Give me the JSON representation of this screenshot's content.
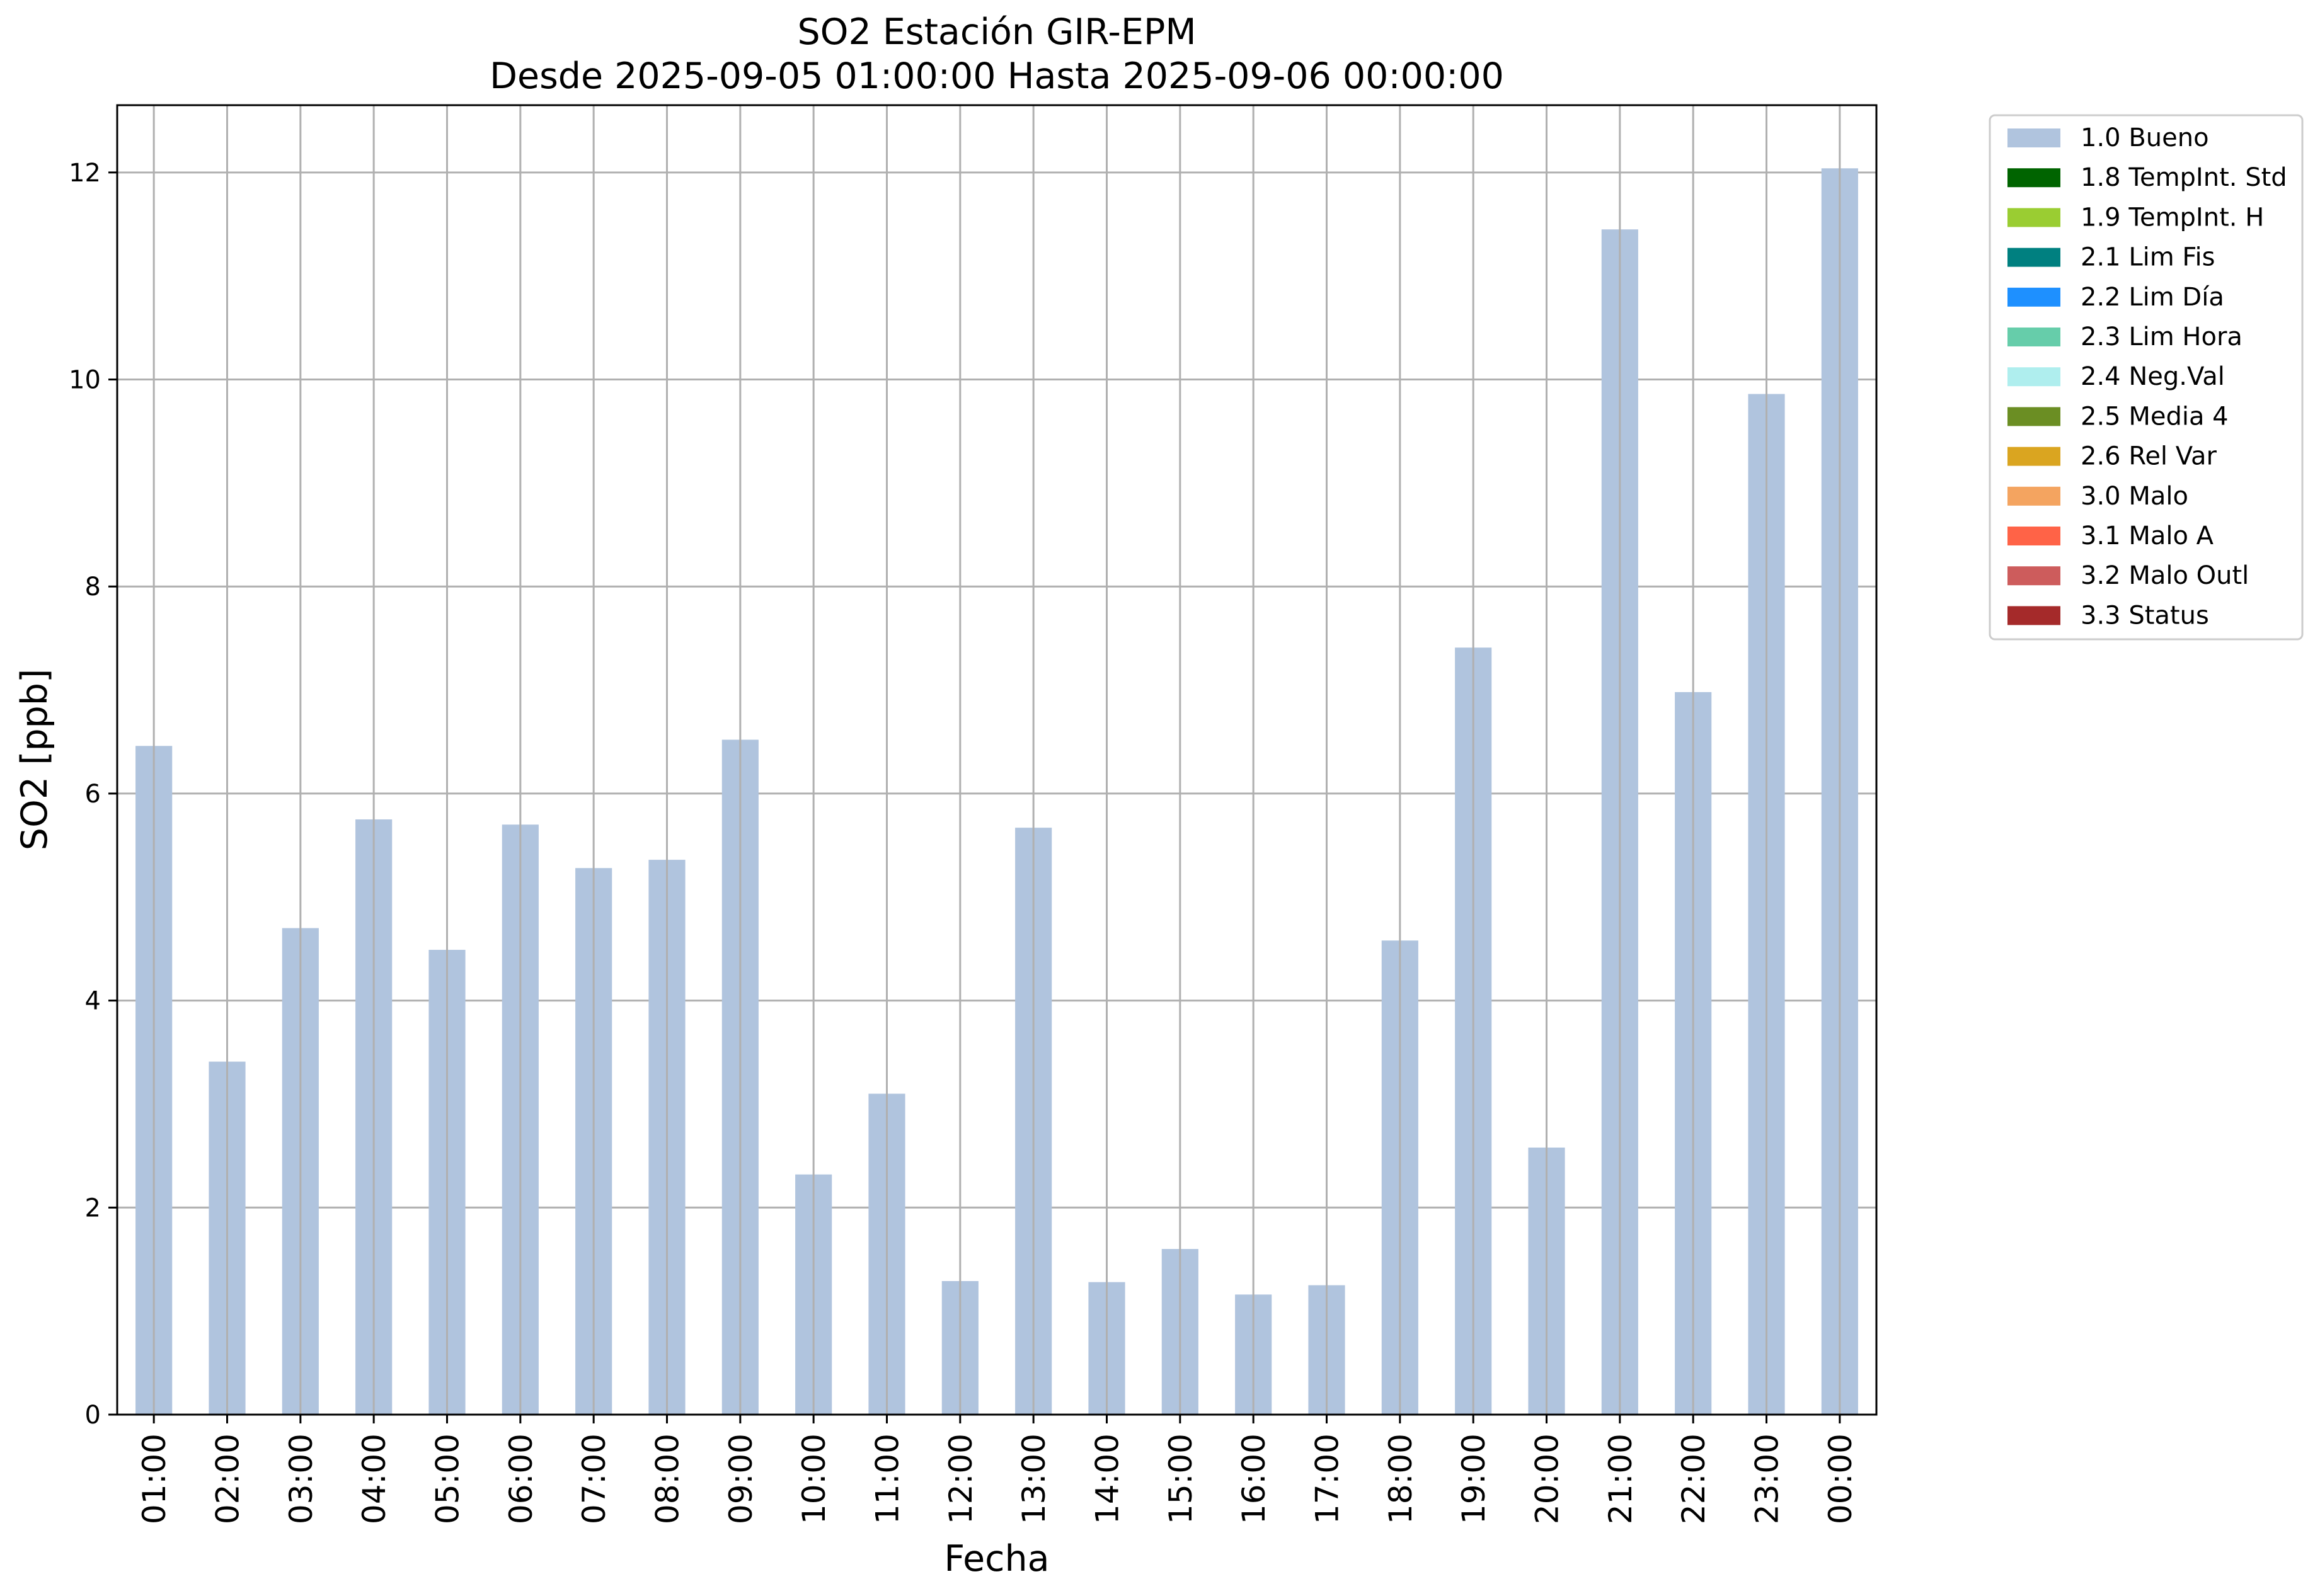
{
  "chart_data": {
    "type": "bar",
    "title_line1": "SO2 Estación GIR-EPM",
    "title_line2": "Desde 2025-09-05 01:00:00 Hasta 2025-09-06 00:00:00",
    "xlabel": "Fecha",
    "ylabel": "SO2 [ppb]",
    "ylim": [
      0,
      12.65
    ],
    "yticks": [
      0,
      2,
      4,
      6,
      8,
      10,
      12
    ],
    "grid": true,
    "legend_placement": "outside-top-right",
    "categories": [
      "01:00",
      "02:00",
      "03:00",
      "04:00",
      "05:00",
      "06:00",
      "07:00",
      "08:00",
      "09:00",
      "10:00",
      "11:00",
      "12:00",
      "13:00",
      "14:00",
      "15:00",
      "16:00",
      "17:00",
      "18:00",
      "19:00",
      "20:00",
      "21:00",
      "22:00",
      "23:00",
      "00:00"
    ],
    "series": [
      {
        "name": "1.0 Bueno",
        "color": "#b0c4de",
        "values": [
          6.46,
          3.41,
          4.7,
          5.75,
          4.49,
          5.7,
          5.28,
          5.36,
          6.52,
          2.32,
          3.1,
          1.29,
          5.67,
          1.28,
          1.6,
          1.16,
          1.25,
          4.58,
          7.41,
          2.58,
          11.45,
          6.98,
          9.86,
          12.04
        ]
      }
    ],
    "legend": [
      {
        "label": "1.0 Bueno",
        "color": "#b0c4de"
      },
      {
        "label": "1.8 TempInt. Std",
        "color": "#006400"
      },
      {
        "label": "1.9 TempInt. H",
        "color": "#9acd32"
      },
      {
        "label": "2.1 Lim Fis",
        "color": "#008080"
      },
      {
        "label": "2.2 Lim Día",
        "color": "#1e90ff"
      },
      {
        "label": "2.3 Lim Hora",
        "color": "#66cdaa"
      },
      {
        "label": "2.4 Neg.Val",
        "color": "#afeeee"
      },
      {
        "label": "2.5 Media 4",
        "color": "#6b8e23"
      },
      {
        "label": "2.6 Rel Var",
        "color": "#daa520"
      },
      {
        "label": "3.0 Malo",
        "color": "#f4a460"
      },
      {
        "label": "3.1 Malo A",
        "color": "#ff6347"
      },
      {
        "label": "3.2 Malo Outl",
        "color": "#cd5c5c"
      },
      {
        "label": "3.3 Status",
        "color": "#a52a2a"
      }
    ]
  }
}
